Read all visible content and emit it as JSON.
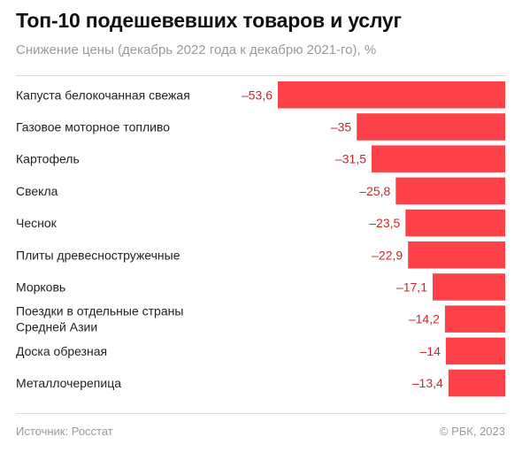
{
  "header": {
    "title": "Топ-10 подешевевших товаров и услуг",
    "subtitle": "Снижение цены (декабрь 2022 года к декабрю 2021-го), %"
  },
  "footer": {
    "source": "Источник: Росстат",
    "credit": "© РБК, 2023"
  },
  "colors": {
    "bar": "#fc4148",
    "value_label": "#c8262c",
    "category_label": "#222222"
  },
  "chart_data": {
    "type": "bar",
    "orientation": "horizontal",
    "title": "Топ-10 подешевевших товаров и услуг",
    "subtitle": "Снижение цены (декабрь 2022 года к декабрю 2021-го), %",
    "categories": [
      [
        "Капуста белокочанная свежая"
      ],
      [
        "Газовое моторное топливо"
      ],
      [
        "Картофель"
      ],
      [
        "Свекла"
      ],
      [
        "Чеснок"
      ],
      [
        "Плиты древесностружечные"
      ],
      [
        "Морковь"
      ],
      [
        "Поездки в отдельные страны",
        "Средней Азии"
      ],
      [
        "Доска обрезная"
      ],
      [
        "Металлочерепица"
      ]
    ],
    "values": [
      -53.6,
      -35,
      -31.5,
      -25.8,
      -23.5,
      -22.9,
      -17.1,
      -14.2,
      -14,
      -13.4
    ],
    "value_labels": [
      "–53,6",
      "–35",
      "–31,5",
      "–25,8",
      "–23,5",
      "–22,9",
      "–17,1",
      "–14,2",
      "–14",
      "–13,4"
    ],
    "xlim": [
      -53.6,
      0
    ],
    "xlabel": "",
    "ylabel": "",
    "grid": false,
    "legend": "none"
  }
}
